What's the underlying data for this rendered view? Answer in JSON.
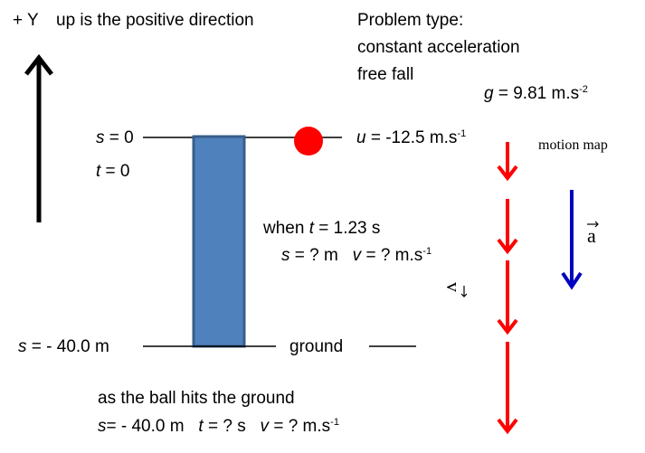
{
  "axis_label": "+ Y",
  "positive_direction": "up is the positive direction",
  "problem": {
    "heading": "Problem type:",
    "line1": "constant acceleration",
    "line2": "free fall"
  },
  "gravity": {
    "symbol": "g",
    "value": "= 9.81  m.s",
    "exp": "-2"
  },
  "top": {
    "s_symbol": "s",
    "s_value": " = 0",
    "t_symbol": "t",
    "t_value": " = 0"
  },
  "initial_velocity": {
    "symbol": "u",
    "value": " = -12.5 m.s",
    "exp": "-1"
  },
  "motion_map_label": "motion map",
  "accel_label": "a",
  "velocity_label": "v",
  "when": {
    "prefix": "when ",
    "t_symbol": "t",
    "value": " = 1.23 s",
    "s_symbol": "s",
    "s_value": " = ? m",
    "v_symbol": "v",
    "v_value": " = ? m.s",
    "v_exp": "-1"
  },
  "bottom": {
    "s_symbol": "s",
    "s_value": " = - 40.0  m"
  },
  "ground_label": "ground",
  "hit": {
    "line1": "as the ball hits the ground",
    "s_symbol": "s",
    "s_value": "= - 40.0 m",
    "t_symbol": "t",
    "t_value": " = ? s",
    "v_symbol": "v",
    "v_value": " = ?  m.s",
    "v_exp": "-1"
  },
  "colors": {
    "ball": "#ff0000",
    "tower_fill": "#4f81bd",
    "tower_stroke": "#385d8a",
    "velocity_arrow": "#ff0000",
    "accel_arrow": "#0000c0",
    "axis_arrow": "#000000"
  }
}
